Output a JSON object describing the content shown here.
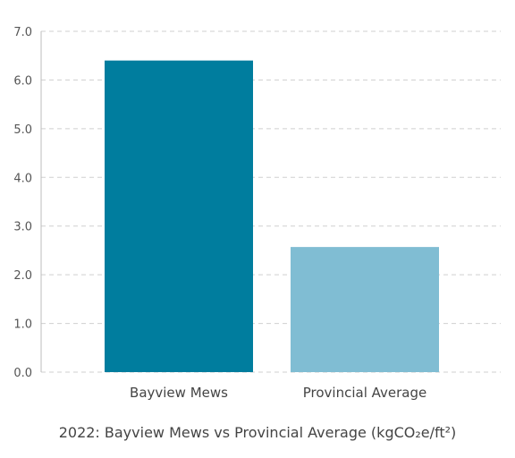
{
  "chart_data": {
    "type": "bar",
    "title": "2022: Bayview Mews vs Provincial Average (kgCO₂e/ft²)",
    "xlabel": "",
    "ylabel": "",
    "categories": [
      "Bayview Mews",
      "Provincial Average"
    ],
    "values": [
      6.4,
      2.57
    ],
    "ylim": [
      0,
      7
    ],
    "yticks": [
      "0.0",
      "1.0",
      "2.0",
      "3.0",
      "4.0",
      "5.0",
      "6.0",
      "7.0"
    ],
    "grid": "horizontal-dashed",
    "colors": [
      "#007d9e",
      "#80bdd3"
    ]
  }
}
